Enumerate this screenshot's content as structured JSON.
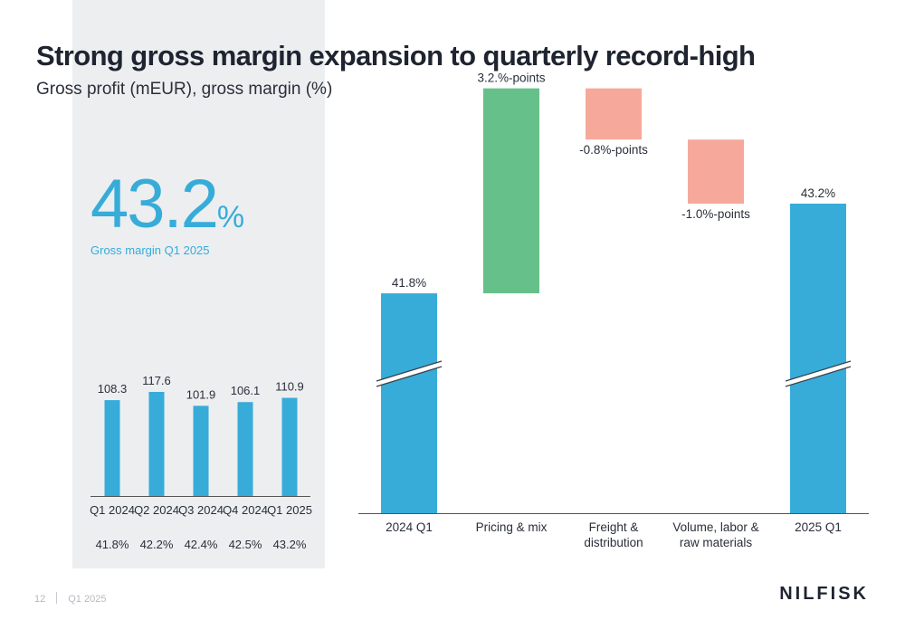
{
  "header": {
    "title": "Strong gross margin expansion to quarterly record-high",
    "subtitle": "Gross profit (mEUR), gross margin (%)"
  },
  "kpi": {
    "value": "43.2",
    "unit": "%",
    "caption": "Gross margin Q1 2025"
  },
  "chart_data": [
    {
      "type": "bar",
      "categories": [
        "Q1 2024",
        "Q2 2024",
        "Q3 2024",
        "Q4 2024",
        "Q1 2025"
      ],
      "series": [
        {
          "values": [
            108.3,
            117.6,
            101.9,
            106.1,
            110.9
          ]
        }
      ],
      "value_labels": [
        "108.3",
        "117.6",
        "101.9",
        "106.1",
        "110.9"
      ],
      "secondary_labels": [
        "41.8%",
        "42.2%",
        "42.4%",
        "42.5%",
        "43.2%"
      ],
      "color": "#37acd9"
    },
    {
      "type": "bar",
      "subtype": "waterfall",
      "categories": [
        "2024 Q1",
        "Pricing & mix",
        "Freight & distribution",
        "Volume, labor & raw materials",
        "2025 Q1"
      ],
      "category_lines": [
        [
          "2024 Q1"
        ],
        [
          "Pricing & mix"
        ],
        [
          "Freight &",
          "distribution"
        ],
        [
          "Volume, labor &",
          "raw materials"
        ],
        [
          "2025 Q1"
        ]
      ],
      "values": [
        41.8,
        3.2,
        -0.8,
        -1.0,
        43.2
      ],
      "kinds": [
        "total",
        "delta",
        "delta",
        "delta",
        "total"
      ],
      "labels": [
        "41.8%",
        "3.2.%-points",
        "-0.8%-points",
        "-1.0%-points",
        "43.2%"
      ],
      "axis_break": true,
      "colors": {
        "total": "#37acd9",
        "increase": "#66c08a",
        "decrease": "#f6a99a"
      }
    }
  ],
  "footer": {
    "page": "12",
    "period": "Q1 2025"
  },
  "logo": {
    "text": "NILFISK"
  }
}
